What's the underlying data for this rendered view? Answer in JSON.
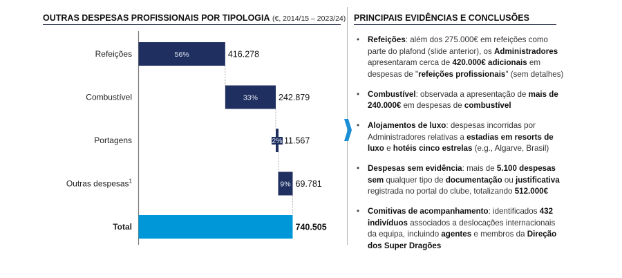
{
  "left_panel": {
    "title_bold": "OUTRAS DESPESAS PROFISSIONAIS POR TIPOLOGIA",
    "title_sub": "(€, 2014/15 – 2023/24)"
  },
  "right_panel": {
    "title": "PRINCIPAIS EVIDÊNCIAS E CONCLUSÕES",
    "bullets": [
      {
        "parts": [
          {
            "t": "Refeições",
            "b": true
          },
          {
            "t": ": além dos 275.000€ em refeições como parte do plafond (slide anterior), os ",
            "b": false
          },
          {
            "t": "Administradores",
            "b": true
          },
          {
            "t": " apresentaram cerca de ",
            "b": false
          },
          {
            "t": "420.000€ adicionais",
            "b": true
          },
          {
            "t": " em despesas de \"",
            "b": false
          },
          {
            "t": "refeições profissionais",
            "b": true
          },
          {
            "t": "\" (sem detalhes)",
            "b": false
          }
        ]
      },
      {
        "parts": [
          {
            "t": "Combustível",
            "b": true
          },
          {
            "t": ": observada a apresentação de ",
            "b": false
          },
          {
            "t": "mais de 240.000€",
            "b": true
          },
          {
            "t": " em despesas de ",
            "b": false
          },
          {
            "t": "combustível",
            "b": true
          }
        ]
      },
      {
        "parts": [
          {
            "t": "Alojamentos de luxo",
            "b": true
          },
          {
            "t": ": despesas incorridas por Administradores relativas a ",
            "b": false
          },
          {
            "t": "estadias em resorts de luxo",
            "b": true
          },
          {
            "t": " e ",
            "b": false
          },
          {
            "t": "hotéis cinco estrelas",
            "b": true
          },
          {
            "t": " (e.g., Algarve, Brasil)",
            "b": false
          }
        ]
      },
      {
        "parts": [
          {
            "t": "Despesas sem evidência",
            "b": true
          },
          {
            "t": ": mais de ",
            "b": false
          },
          {
            "t": "5.100 despesas sem",
            "b": true
          },
          {
            "t": " qualquer tipo de ",
            "b": false
          },
          {
            "t": "documentação",
            "b": true
          },
          {
            "t": " ou ",
            "b": false
          },
          {
            "t": "justificativa",
            "b": true
          },
          {
            "t": " registrada no portal do clube, totalizando ",
            "b": false
          },
          {
            "t": "512.000€",
            "b": true
          }
        ]
      },
      {
        "parts": [
          {
            "t": "Comitivas de acompanhamento",
            "b": true
          },
          {
            "t": ": identificados ",
            "b": false
          },
          {
            "t": "432 indivíduos",
            "b": true
          },
          {
            "t": " associados a deslocações internacionais da equipa, incluindo ",
            "b": false
          },
          {
            "t": "agentes",
            "b": true
          },
          {
            "t": " e membros da ",
            "b": false
          },
          {
            "t": "Direção dos Super Dragões",
            "b": true
          }
        ]
      }
    ]
  },
  "icons": {
    "chevron": "chevron-right-icon"
  },
  "colors": {
    "bar": "#1f3060",
    "total": "#0097d8",
    "chevron": "#1a8fd6",
    "axis": "#7a7a7a"
  },
  "chart_data": {
    "type": "bar",
    "subtype": "waterfall-horizontal",
    "title": "OUTRAS DESPESAS PROFISSIONAIS POR TIPOLOGIA",
    "subtitle": "(€, 2014/15 – 2023/24)",
    "categories": [
      "Refeições",
      "Combustível",
      "Portagens",
      "Outras despesas",
      "Total"
    ],
    "footnote_marks": [
      "",
      "",
      "",
      "1",
      ""
    ],
    "values": [
      416278,
      242879,
      11567,
      69781,
      740505
    ],
    "value_labels": [
      "416.278",
      "242.879",
      "11.567",
      "69.781",
      "740.505"
    ],
    "percent_labels": [
      "56%",
      "33%",
      "2%",
      "9%",
      ""
    ],
    "xlim": [
      0,
      740505
    ],
    "grid": false,
    "legend": "none"
  }
}
